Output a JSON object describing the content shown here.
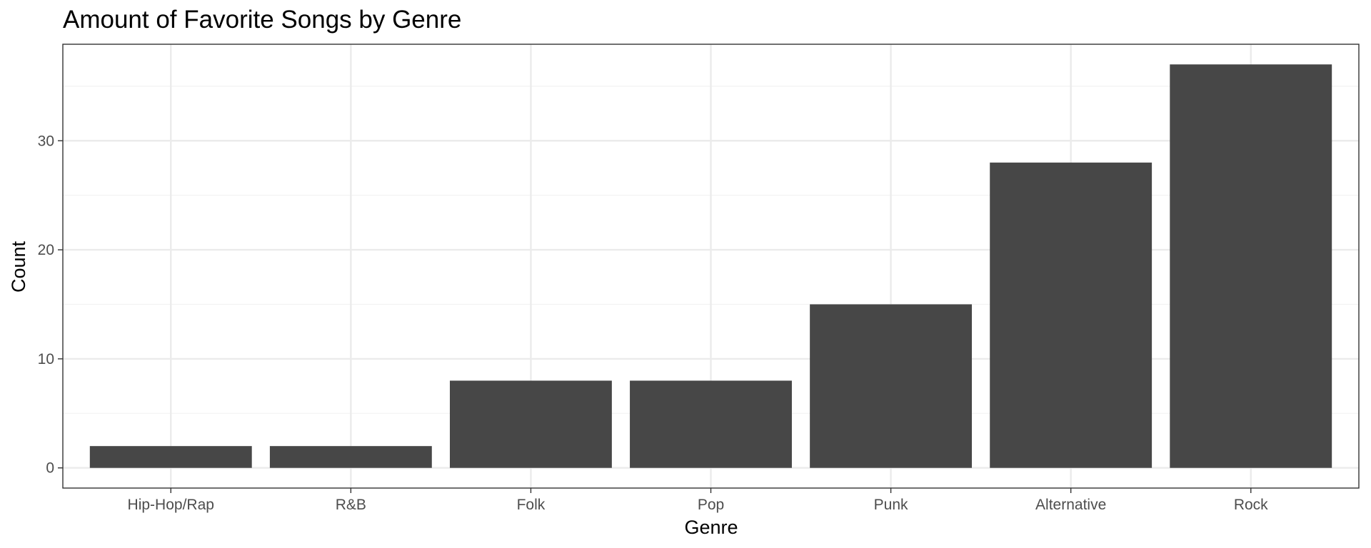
{
  "chart_data": {
    "type": "bar",
    "title": "Amount of Favorite Songs by Genre",
    "xlabel": "Genre",
    "ylabel": "Count",
    "categories": [
      "Hip-Hop/Rap",
      "R&B",
      "Folk",
      "Pop",
      "Punk",
      "Alternative",
      "Rock"
    ],
    "values": [
      2,
      2,
      8,
      8,
      15,
      28,
      37
    ],
    "ylim": [
      -1.85,
      38.85
    ],
    "yticks": [
      0,
      10,
      20,
      30
    ],
    "grid": true,
    "legend": "none",
    "colors": {
      "bar": "#474747",
      "panel_border": "#333333",
      "grid_major": "#ebebeb",
      "grid_minor": "#f2f2f2",
      "tick_label": "#4d4d4d",
      "text": "#000000"
    }
  }
}
